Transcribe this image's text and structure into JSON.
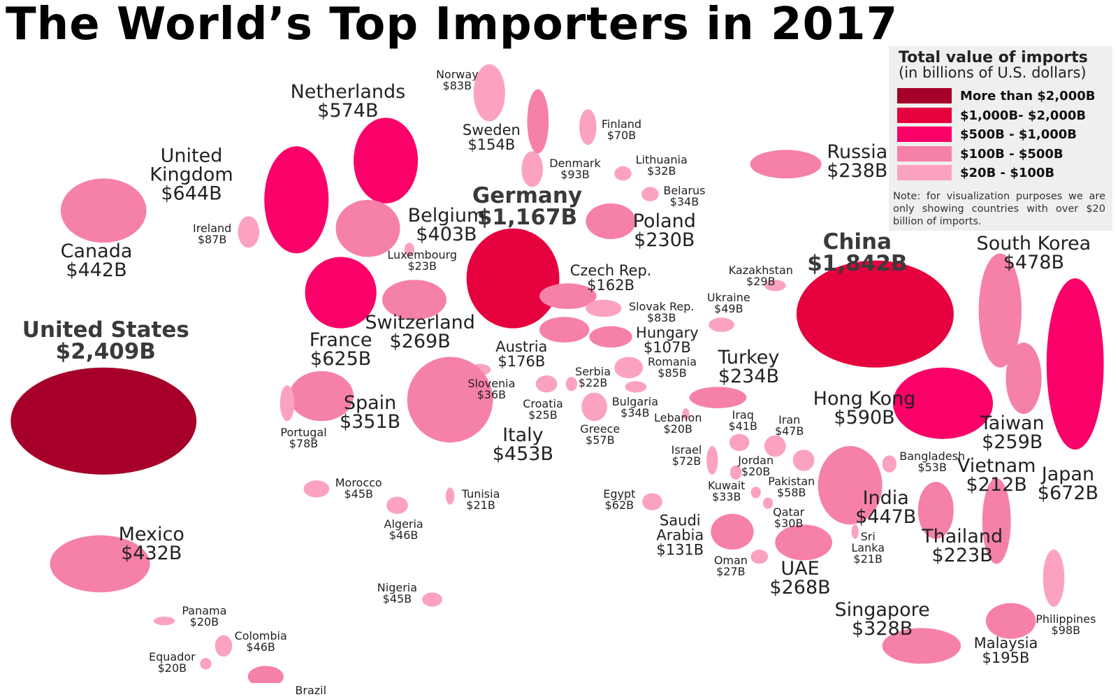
{
  "title": "The World’s Top Importers in 2017",
  "legend": {
    "title": "Total value of imports",
    "subtitle": "(in billions of U.S. dollars)",
    "items": [
      {
        "label": "More than $2,000B",
        "min": 2000,
        "color": "#a6002a"
      },
      {
        "label": "$1,000B- $2,000B",
        "min": 1000,
        "color": "#e5003e"
      },
      {
        "label": "$500B - $1,000B",
        "min": 500,
        "color": "#fa0068"
      },
      {
        "label": "$100B - $500B",
        "min": 100,
        "color": "#f681a8"
      },
      {
        "label": "$20B - $100B",
        "min": 20,
        "color": "#fba2c2"
      }
    ],
    "note": "Note: for visualization purposes we are only showing countries with over $20 billion of imports."
  },
  "countries": [
    {
      "name": "United States",
      "value": 2409,
      "value_label": "$2,409B"
    },
    {
      "name": "Canada",
      "value": 442,
      "value_label": "$442B"
    },
    {
      "name": "Mexico",
      "value": 432,
      "value_label": "$432B"
    },
    {
      "name": "United Kingdom",
      "value": 644,
      "value_label": "$644B"
    },
    {
      "name": "Ireland",
      "value": 87,
      "value_label": "$87B"
    },
    {
      "name": "Netherlands",
      "value": 574,
      "value_label": "$574B"
    },
    {
      "name": "Norway",
      "value": 83,
      "value_label": "$83B"
    },
    {
      "name": "Sweden",
      "value": 154,
      "value_label": "$154B"
    },
    {
      "name": "Finland",
      "value": 70,
      "value_label": "$70B"
    },
    {
      "name": "Denmark",
      "value": 93,
      "value_label": "$93B"
    },
    {
      "name": "Lithuania",
      "value": 32,
      "value_label": "$32B"
    },
    {
      "name": "Belarus",
      "value": 34,
      "value_label": "$34B"
    },
    {
      "name": "Russia",
      "value": 238,
      "value_label": "$238B"
    },
    {
      "name": "Germany",
      "value": 1167,
      "value_label": "$1,167B"
    },
    {
      "name": "Belgium",
      "value": 403,
      "value_label": "$403B"
    },
    {
      "name": "Luxembourg",
      "value": 23,
      "value_label": "$23B"
    },
    {
      "name": "Poland",
      "value": 230,
      "value_label": "$230B"
    },
    {
      "name": "France",
      "value": 625,
      "value_label": "$625B"
    },
    {
      "name": "Switzerland",
      "value": 269,
      "value_label": "$269B"
    },
    {
      "name": "Czech Rep.",
      "value": 162,
      "value_label": "$162B"
    },
    {
      "name": "Slovak Rep.",
      "value": 83,
      "value_label": "$83B"
    },
    {
      "name": "Hungary",
      "value": 107,
      "value_label": "$107B"
    },
    {
      "name": "Austria",
      "value": 176,
      "value_label": "$176B"
    },
    {
      "name": "Romania",
      "value": 85,
      "value_label": "$85B"
    },
    {
      "name": "Serbia",
      "value": 22,
      "value_label": "$22B"
    },
    {
      "name": "Slovenia",
      "value": 36,
      "value_label": "$36B"
    },
    {
      "name": "Croatia",
      "value": 25,
      "value_label": "$25B"
    },
    {
      "name": "Bulgaria",
      "value": 34,
      "value_label": "$34B"
    },
    {
      "name": "Greece",
      "value": 57,
      "value_label": "$57B"
    },
    {
      "name": "Italy",
      "value": 453,
      "value_label": "$453B"
    },
    {
      "name": "Spain",
      "value": 351,
      "value_label": "$351B"
    },
    {
      "name": "Portugal",
      "value": 78,
      "value_label": "$78B"
    },
    {
      "name": "Morocco",
      "value": 45,
      "value_label": "$45B"
    },
    {
      "name": "Tunisia",
      "value": 21,
      "value_label": "$21B"
    },
    {
      "name": "Algeria",
      "value": 46,
      "value_label": "$46B"
    },
    {
      "name": "Nigeria",
      "value": 45,
      "value_label": "$45B"
    },
    {
      "name": "Egypt",
      "value": 62,
      "value_label": "$62B"
    },
    {
      "name": "Turkey",
      "value": 234,
      "value_label": "$234B"
    },
    {
      "name": "Kazakhstan",
      "value": 29,
      "value_label": "$29B"
    },
    {
      "name": "Ukraine",
      "value": 49,
      "value_label": "$49B"
    },
    {
      "name": "Lebanon",
      "value": 20,
      "value_label": "$20B"
    },
    {
      "name": "Iraq",
      "value": 41,
      "value_label": "$41B"
    },
    {
      "name": "Iran",
      "value": 47,
      "value_label": "$47B"
    },
    {
      "name": "Israel",
      "value": 72,
      "value_label": "$72B"
    },
    {
      "name": "Jordan",
      "value": 20,
      "value_label": "$20B"
    },
    {
      "name": "Kuwait",
      "value": 33,
      "value_label": "$33B"
    },
    {
      "name": "Pakistan",
      "value": 58,
      "value_label": "$58B"
    },
    {
      "name": "Qatar",
      "value": 30,
      "value_label": "$30B"
    },
    {
      "name": "Saudi Arabia",
      "value": 131,
      "value_label": "$131B"
    },
    {
      "name": "Oman",
      "value": 27,
      "value_label": "$27B"
    },
    {
      "name": "UAE",
      "value": 268,
      "value_label": "$268B"
    },
    {
      "name": "India",
      "value": 447,
      "value_label": "$447B"
    },
    {
      "name": "Sri Lanka",
      "value": 21,
      "value_label": "$21B"
    },
    {
      "name": "China",
      "value": 1842,
      "value_label": "$1,842B"
    },
    {
      "name": "South Korea",
      "value": 478,
      "value_label": "$478B"
    },
    {
      "name": "Japan",
      "value": 672,
      "value_label": "$672B"
    },
    {
      "name": "Hong Kong",
      "value": 590,
      "value_label": "$590B"
    },
    {
      "name": "Taiwan",
      "value": 259,
      "value_label": "$259B"
    },
    {
      "name": "Bangladesh",
      "value": 53,
      "value_label": "$53B"
    },
    {
      "name": "Vietnam",
      "value": 212,
      "value_label": "$212B"
    },
    {
      "name": "Thailand",
      "value": 223,
      "value_label": "$223B"
    },
    {
      "name": "Philippines",
      "value": 98,
      "value_label": "$98B"
    },
    {
      "name": "Malaysia",
      "value": 195,
      "value_label": "$195B"
    },
    {
      "name": "Singapore",
      "value": 328,
      "value_label": "$328B"
    },
    {
      "name": "Panama",
      "value": 20,
      "value_label": "$20B"
    },
    {
      "name": "Colombia",
      "value": 46,
      "value_label": "$46B"
    },
    {
      "name": "Equador",
      "value": 20,
      "value_label": "$20B"
    },
    {
      "name": "Brazil"
    }
  ]
}
